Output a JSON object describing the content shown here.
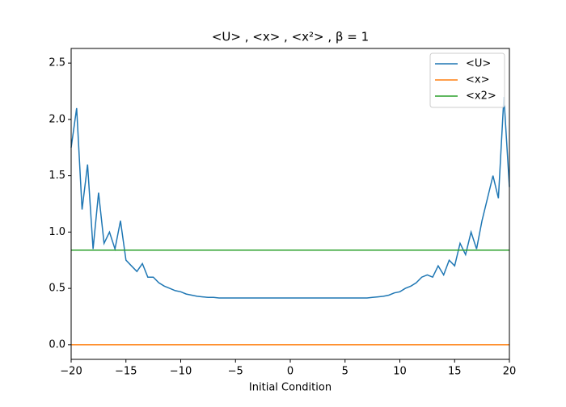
{
  "chart_data": {
    "type": "line",
    "title": "<U> , <x> , <x²> , β = 1",
    "xlabel": "Initial Condition",
    "x": [
      -20,
      -19.5,
      -19,
      -18.5,
      -18,
      -17.5,
      -17,
      -16.5,
      -16,
      -15.5,
      -15,
      -14.5,
      -14,
      -13.5,
      -13,
      -12.5,
      -12,
      -11.5,
      -11,
      -10.5,
      -10,
      -9.5,
      -9,
      -8.5,
      -8,
      -7.5,
      -7,
      -6.5,
      -6,
      -5.5,
      -5,
      -4.5,
      -4,
      -3.5,
      -3,
      -2.5,
      -2,
      -1.5,
      -1,
      -0.5,
      0,
      0.5,
      1,
      1.5,
      2,
      2.5,
      3,
      3.5,
      4,
      4.5,
      5,
      5.5,
      6,
      6.5,
      7,
      7.5,
      8,
      8.5,
      9,
      9.5,
      10,
      10.5,
      11,
      11.5,
      12,
      12.5,
      13,
      13.5,
      14,
      14.5,
      15,
      15.5,
      16,
      16.5,
      17,
      17.5,
      18,
      18.5,
      19,
      19.5,
      20
    ],
    "series": [
      {
        "name": "<U>",
        "color": "#1f77b4",
        "values": [
          1.75,
          2.1,
          1.2,
          1.6,
          0.85,
          1.35,
          0.9,
          1.0,
          0.85,
          1.1,
          0.75,
          0.7,
          0.65,
          0.72,
          0.6,
          0.6,
          0.55,
          0.52,
          0.5,
          0.48,
          0.47,
          0.45,
          0.44,
          0.43,
          0.425,
          0.42,
          0.42,
          0.415,
          0.415,
          0.415,
          0.415,
          0.415,
          0.415,
          0.415,
          0.415,
          0.415,
          0.415,
          0.415,
          0.415,
          0.415,
          0.415,
          0.415,
          0.415,
          0.415,
          0.415,
          0.415,
          0.415,
          0.415,
          0.415,
          0.415,
          0.415,
          0.415,
          0.415,
          0.415,
          0.415,
          0.42,
          0.425,
          0.43,
          0.44,
          0.46,
          0.47,
          0.5,
          0.52,
          0.55,
          0.6,
          0.62,
          0.6,
          0.7,
          0.62,
          0.75,
          0.7,
          0.9,
          0.8,
          1.0,
          0.85,
          1.1,
          1.3,
          1.5,
          1.3,
          2.2,
          1.4
        ]
      },
      {
        "name": "<x>",
        "color": "#ff7f0e",
        "values": [
          0,
          0,
          0,
          0,
          0,
          0,
          0,
          0,
          0,
          0,
          0,
          0,
          0,
          0,
          0,
          0,
          0,
          0,
          0,
          0,
          0,
          0,
          0,
          0,
          0,
          0,
          0,
          0,
          0,
          0,
          0,
          0,
          0,
          0,
          0,
          0,
          0,
          0,
          0,
          0,
          0,
          0,
          0,
          0,
          0,
          0,
          0,
          0,
          0,
          0,
          0,
          0,
          0,
          0,
          0,
          0,
          0,
          0,
          0,
          0,
          0,
          0,
          0,
          0,
          0,
          0,
          0,
          0,
          0,
          0,
          0,
          0,
          0,
          0,
          0,
          0,
          0,
          0,
          0,
          0,
          0
        ]
      },
      {
        "name": "<x2>",
        "color": "#2ca02c",
        "values": [
          0.84,
          0.84,
          0.84,
          0.84,
          0.84,
          0.84,
          0.84,
          0.84,
          0.84,
          0.84,
          0.84,
          0.84,
          0.84,
          0.84,
          0.84,
          0.84,
          0.84,
          0.84,
          0.84,
          0.84,
          0.84,
          0.84,
          0.84,
          0.84,
          0.84,
          0.84,
          0.84,
          0.84,
          0.84,
          0.84,
          0.84,
          0.84,
          0.84,
          0.84,
          0.84,
          0.84,
          0.84,
          0.84,
          0.84,
          0.84,
          0.84,
          0.84,
          0.84,
          0.84,
          0.84,
          0.84,
          0.84,
          0.84,
          0.84,
          0.84,
          0.84,
          0.84,
          0.84,
          0.84,
          0.84,
          0.84,
          0.84,
          0.84,
          0.84,
          0.84,
          0.84,
          0.84,
          0.84,
          0.84,
          0.84,
          0.84,
          0.84,
          0.84,
          0.84,
          0.84,
          0.84,
          0.84,
          0.84,
          0.84,
          0.84,
          0.84,
          0.84,
          0.84,
          0.84,
          0.84,
          0.84
        ]
      }
    ],
    "xlim": [
      -20,
      20
    ],
    "xticks": [
      {
        "value": -20,
        "label": "−20"
      },
      {
        "value": -15,
        "label": "−15"
      },
      {
        "value": -10,
        "label": "−10"
      },
      {
        "value": -5,
        "label": "−5"
      },
      0,
      5,
      10,
      15,
      20
    ],
    "ylim": [
      -0.13,
      2.63
    ],
    "yticks": [
      {
        "value": 0,
        "label": "0.0"
      },
      0.5,
      {
        "value": 1,
        "label": "1.0"
      },
      1.5,
      {
        "value": 2,
        "label": "2.0"
      },
      2.5
    ],
    "legend": "upper right"
  }
}
